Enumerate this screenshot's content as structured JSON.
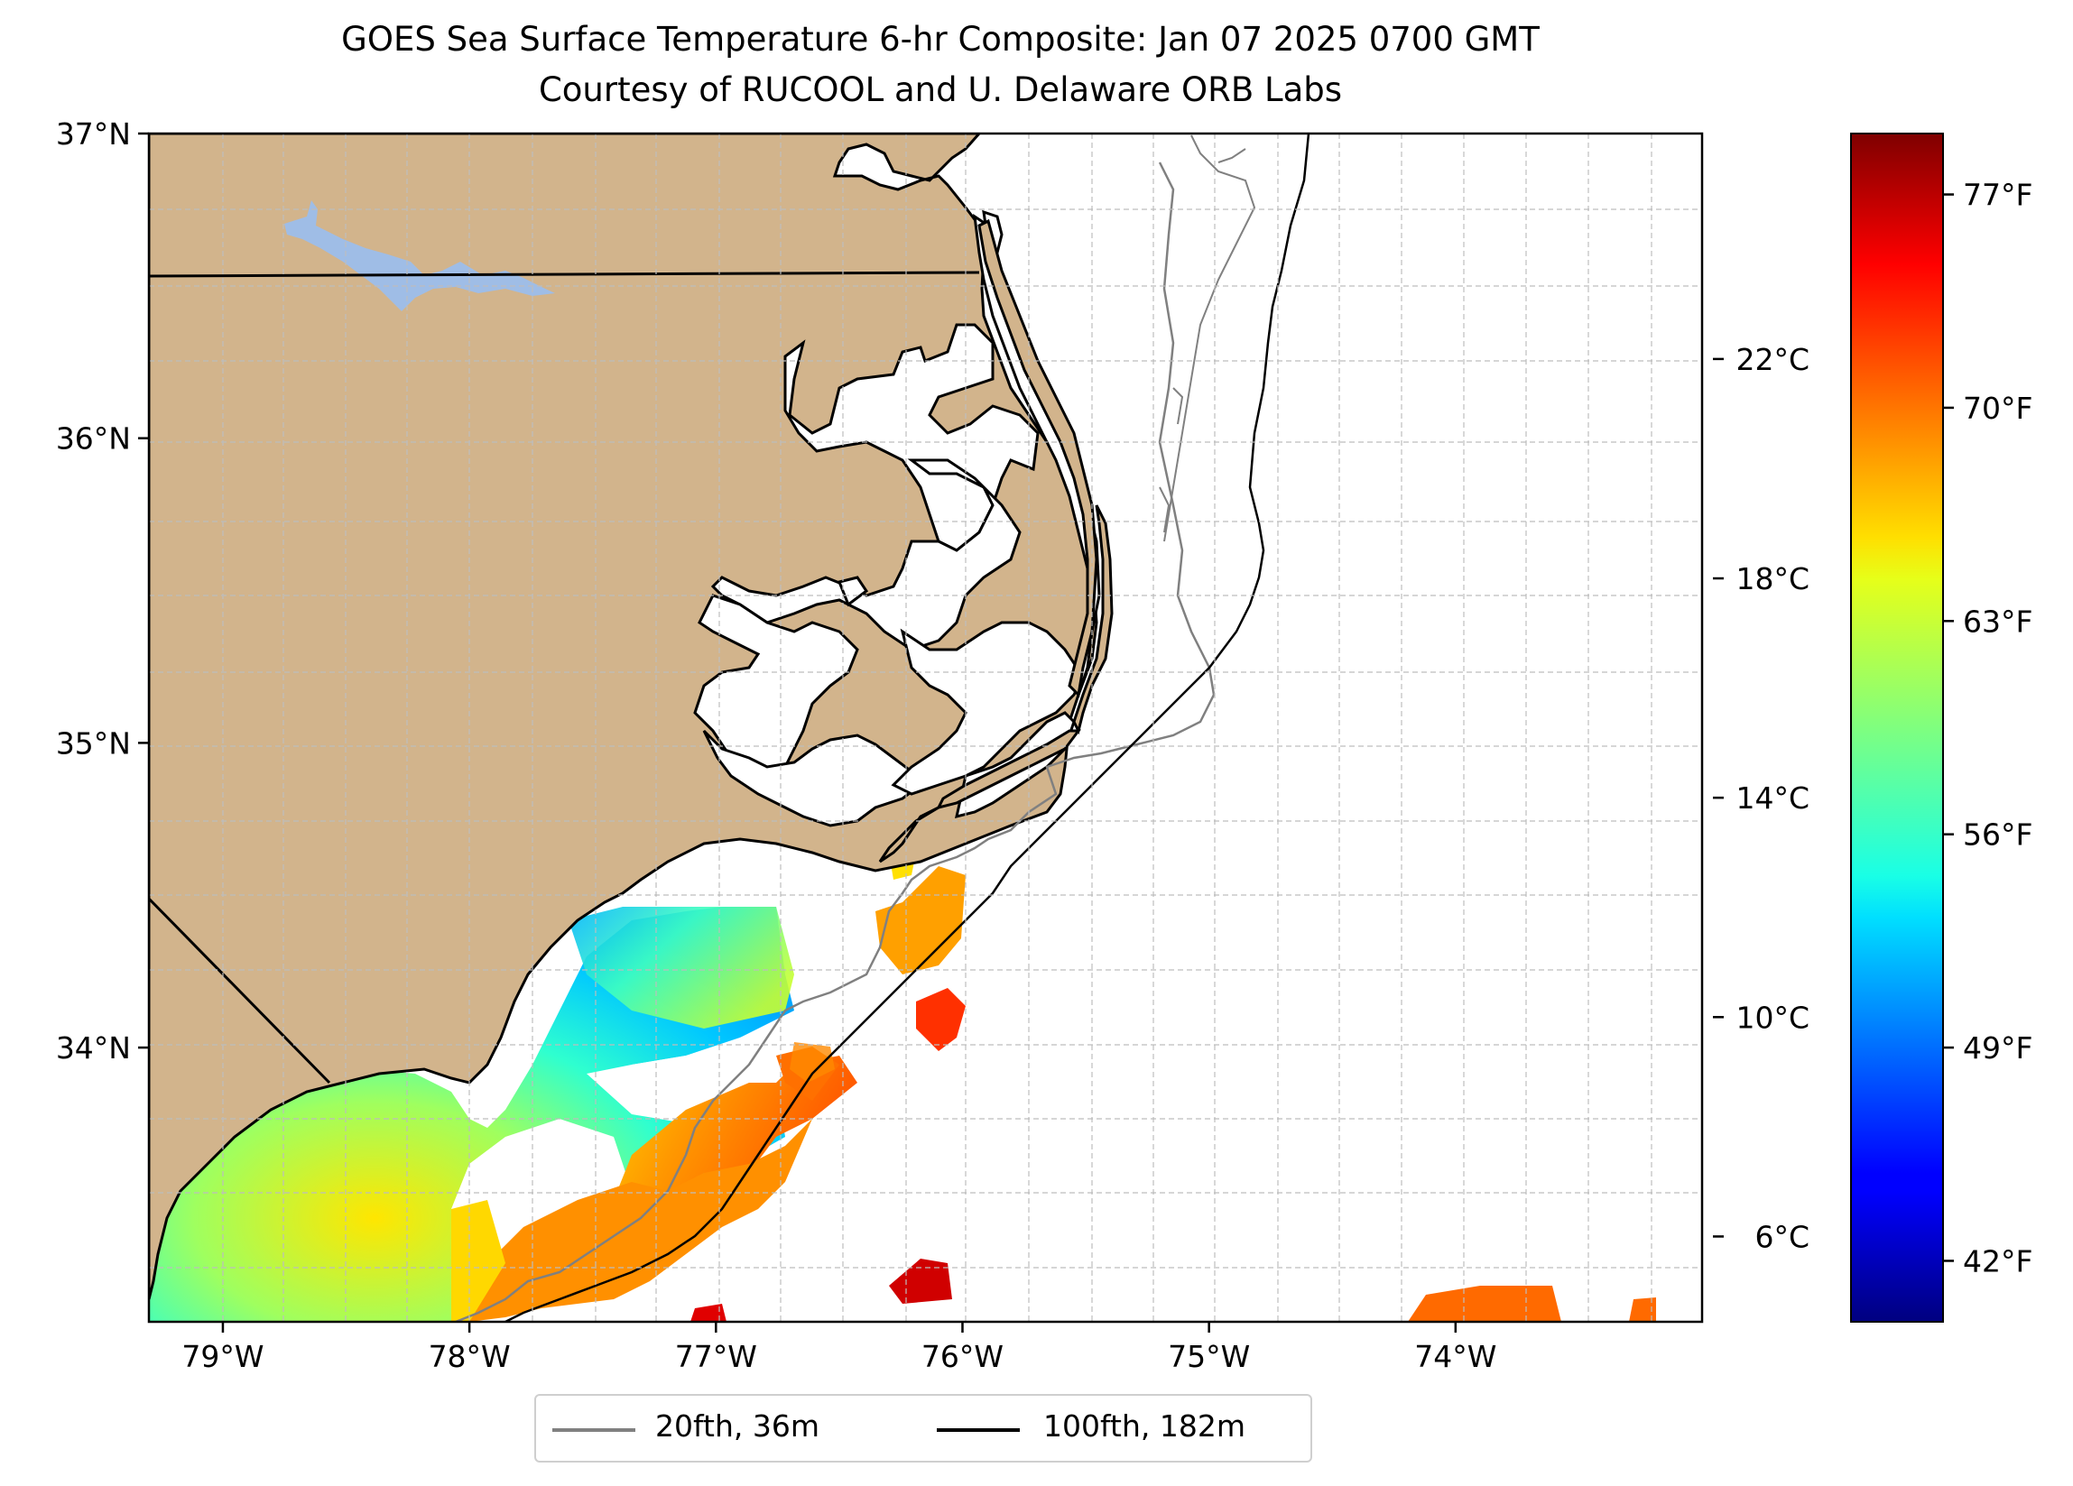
{
  "title": "GOES Sea Surface Temperature 6-hr Composite: Jan 07 2025 0700 GMT",
  "subtitle": "Courtesy of RUCOOL and U. Delaware ORB Labs",
  "map": {
    "lon_range": [
      -79.3,
      -73.0
    ],
    "lat_range": [
      33.1,
      37.0
    ],
    "lon_ticks": [
      -79,
      -78,
      -77,
      -76,
      -75,
      -74
    ],
    "lon_tick_labels": [
      "79°W",
      "78°W",
      "77°W",
      "76°W",
      "75°W",
      "74°W"
    ],
    "lat_ticks": [
      34,
      35,
      36,
      37
    ],
    "lat_tick_labels": [
      "34°N",
      "35°N",
      "36°N",
      "37°N"
    ],
    "land_color": "#d2b48c",
    "lake_color": "#9fbde6",
    "ocean_color": "#ffffff",
    "gridlines": true
  },
  "colorbar": {
    "colormap": "jet",
    "range_f": [
      40,
      79
    ],
    "celsius_ticks": [
      6,
      10,
      14,
      18,
      22
    ],
    "celsius_labels": [
      "6°C",
      "10°C",
      "14°C",
      "18°C",
      "22°C"
    ],
    "fahrenheit_ticks": [
      42,
      49,
      56,
      63,
      70,
      77
    ],
    "fahrenheit_labels": [
      "42°F",
      "49°F",
      "56°F",
      "63°F",
      "70°F",
      "77°F"
    ]
  },
  "legend": {
    "items": [
      {
        "label": "20fth, 36m",
        "color": "#808080"
      },
      {
        "label": "100fth, 182m",
        "color": "#000000"
      }
    ]
  }
}
